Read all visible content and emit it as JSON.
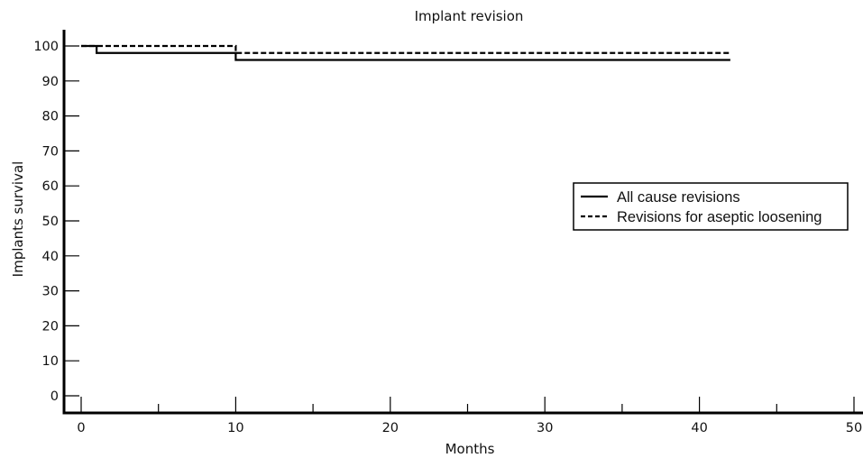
{
  "chart_data": {
    "type": "line",
    "title": "Implant revision",
    "xlabel": "Months",
    "ylabel": "Implants survival",
    "xlim": [
      0,
      50
    ],
    "ylim": [
      0,
      100
    ],
    "x_ticks": [
      0,
      10,
      20,
      30,
      40,
      50
    ],
    "y_ticks": [
      0,
      10,
      20,
      30,
      40,
      50,
      60,
      70,
      80,
      90,
      100
    ],
    "grid": false,
    "legend_position": "right",
    "series": [
      {
        "name": "All cause revisions",
        "line_style": "solid",
        "color": "#000000",
        "step": true,
        "x": [
          0,
          1,
          10,
          42
        ],
        "y": [
          100,
          98,
          96,
          96
        ]
      },
      {
        "name": "Revisions for aseptic loosening",
        "line_style": "dashed",
        "color": "#000000",
        "step": true,
        "x": [
          0,
          10,
          42
        ],
        "y": [
          100,
          98,
          98
        ]
      }
    ]
  }
}
